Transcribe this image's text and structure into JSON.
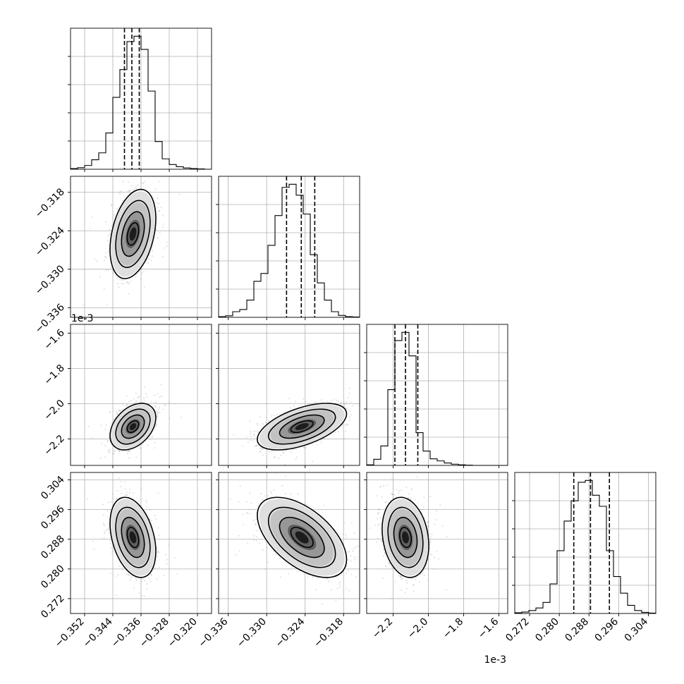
{
  "chart_data": {
    "type": "corner",
    "grid": true,
    "offset_labels": [
      "1e-3",
      "1e-3"
    ],
    "parameters": [
      {
        "axis_range": [
          -0.356,
          -0.316
        ],
        "ticks": [
          -0.352,
          -0.344,
          -0.336,
          -0.328,
          -0.32
        ],
        "tick_labels": [
          "−0.352",
          "−0.344",
          "−0.336",
          "−0.328",
          "−0.320"
        ],
        "quantiles": [
          -0.3407,
          -0.3386,
          -0.3365
        ],
        "hist": {
          "edges": [
            -0.356,
            -0.354,
            -0.352,
            -0.35,
            -0.348,
            -0.346,
            -0.344,
            -0.342,
            -0.34,
            -0.338,
            -0.336,
            -0.334,
            -0.332,
            -0.33,
            -0.328,
            -0.326,
            -0.324,
            -0.322,
            -0.32,
            -0.318,
            -0.316
          ],
          "counts": [
            2,
            5,
            12,
            30,
            52,
            115,
            228,
            316,
            405,
            422,
            380,
            248,
            88,
            33,
            15,
            8,
            4,
            2,
            1,
            0
          ]
        },
        "peak": [
          -0.3384,
          null
        ]
      },
      {
        "axis_range": [
          -0.3375,
          -0.3155
        ],
        "ticks": [
          -0.336,
          -0.33,
          -0.324,
          -0.318
        ],
        "tick_labels": [
          "−0.336",
          "−0.330",
          "−0.324",
          "−0.318"
        ],
        "quantiles": [
          -0.3269,
          -0.3246,
          -0.3225
        ],
        "hist": {
          "edges": [
            -0.3375,
            -0.3364,
            -0.3353,
            -0.3342,
            -0.3331,
            -0.332,
            -0.3309,
            -0.3298,
            -0.3287,
            -0.3276,
            -0.3265,
            -0.3254,
            -0.3243,
            -0.3232,
            -0.3221,
            -0.321,
            -0.3199,
            -0.3188,
            -0.3177,
            -0.3166,
            -0.3155
          ],
          "counts": [
            2,
            5,
            18,
            25,
            55,
            115,
            140,
            230,
            325,
            415,
            425,
            390,
            330,
            200,
            110,
            55,
            18,
            6,
            2,
            1
          ]
        },
        "peak": [
          -0.3245,
          -0.3245
        ]
      },
      {
        "axis_range": [
          -2.35,
          -1.55
        ],
        "ticks": [
          -2.2,
          -2.0,
          -1.8,
          -1.6
        ],
        "tick_labels": [
          "−2.2",
          "−2.0",
          "−1.8",
          "−1.6"
        ],
        "quantiles": [
          -2.19,
          -2.13,
          -2.06
        ],
        "hist": {
          "edges": [
            -2.35,
            -2.31,
            -2.27,
            -2.23,
            -2.19,
            -2.15,
            -2.11,
            -2.07,
            -2.03,
            -1.99,
            -1.95,
            -1.91,
            -1.87,
            -1.83,
            -1.79,
            -1.75,
            -1.71,
            -1.67,
            -1.63,
            -1.59,
            -1.55
          ],
          "counts": [
            3,
            30,
            95,
            370,
            610,
            650,
            535,
            160,
            70,
            32,
            22,
            12,
            6,
            3,
            1,
            0,
            0,
            0,
            0,
            0
          ]
        },
        "peak": [
          -2.13,
          -2.13
        ]
      },
      {
        "axis_range": [
          0.268,
          0.306
        ],
        "ticks": [
          0.272,
          0.28,
          0.288,
          0.296,
          0.304
        ],
        "tick_labels": [
          "0.272",
          "0.280",
          "0.288",
          "0.296",
          "0.304"
        ],
        "quantiles": [
          0.2839,
          0.2884,
          0.2935
        ],
        "hist": {
          "edges": [
            0.268,
            0.2699,
            0.2718,
            0.2737,
            0.2756,
            0.2775,
            0.2794,
            0.2813,
            0.2832,
            0.2851,
            0.287,
            0.2889,
            0.2908,
            0.2927,
            0.2946,
            0.2965,
            0.2984,
            0.3003,
            0.3022,
            0.3041,
            0.306
          ],
          "counts": [
            2,
            4,
            8,
            15,
            30,
            80,
            170,
            250,
            305,
            355,
            360,
            320,
            290,
            170,
            100,
            55,
            22,
            8,
            3,
            1
          ]
        },
        "peak": [
          0.2885,
          0.2885
        ]
      }
    ],
    "pairs": [
      {
        "row": 1,
        "col": 0,
        "center": [
          -0.3383,
          -0.3245
        ],
        "sd": [
          0.0027,
          0.0029
        ],
        "corr": 0.35
      },
      {
        "row": 2,
        "col": 0,
        "center": [
          -0.3383,
          -2.13
        ],
        "sd": [
          0.0027,
          0.055
        ],
        "corr": 0.38
      },
      {
        "row": 2,
        "col": 1,
        "center": [
          -0.3245,
          -2.13
        ],
        "sd": [
          0.0029,
          0.055
        ],
        "corr": 0.55
      },
      {
        "row": 3,
        "col": 0,
        "center": [
          -0.3383,
          0.2885
        ],
        "sd": [
          0.0027,
          0.0045
        ],
        "corr": -0.35
      },
      {
        "row": 3,
        "col": 1,
        "center": [
          -0.3245,
          0.2885
        ],
        "sd": [
          0.0029,
          0.0045
        ],
        "corr": -0.55
      },
      {
        "row": 3,
        "col": 2,
        "center": [
          -2.13,
          0.2885
        ],
        "sd": [
          0.055,
          0.0045
        ],
        "corr": -0.2
      }
    ],
    "contour_levels_sigma": [
      0.5,
      1.0,
      1.5,
      2.0
    ]
  }
}
